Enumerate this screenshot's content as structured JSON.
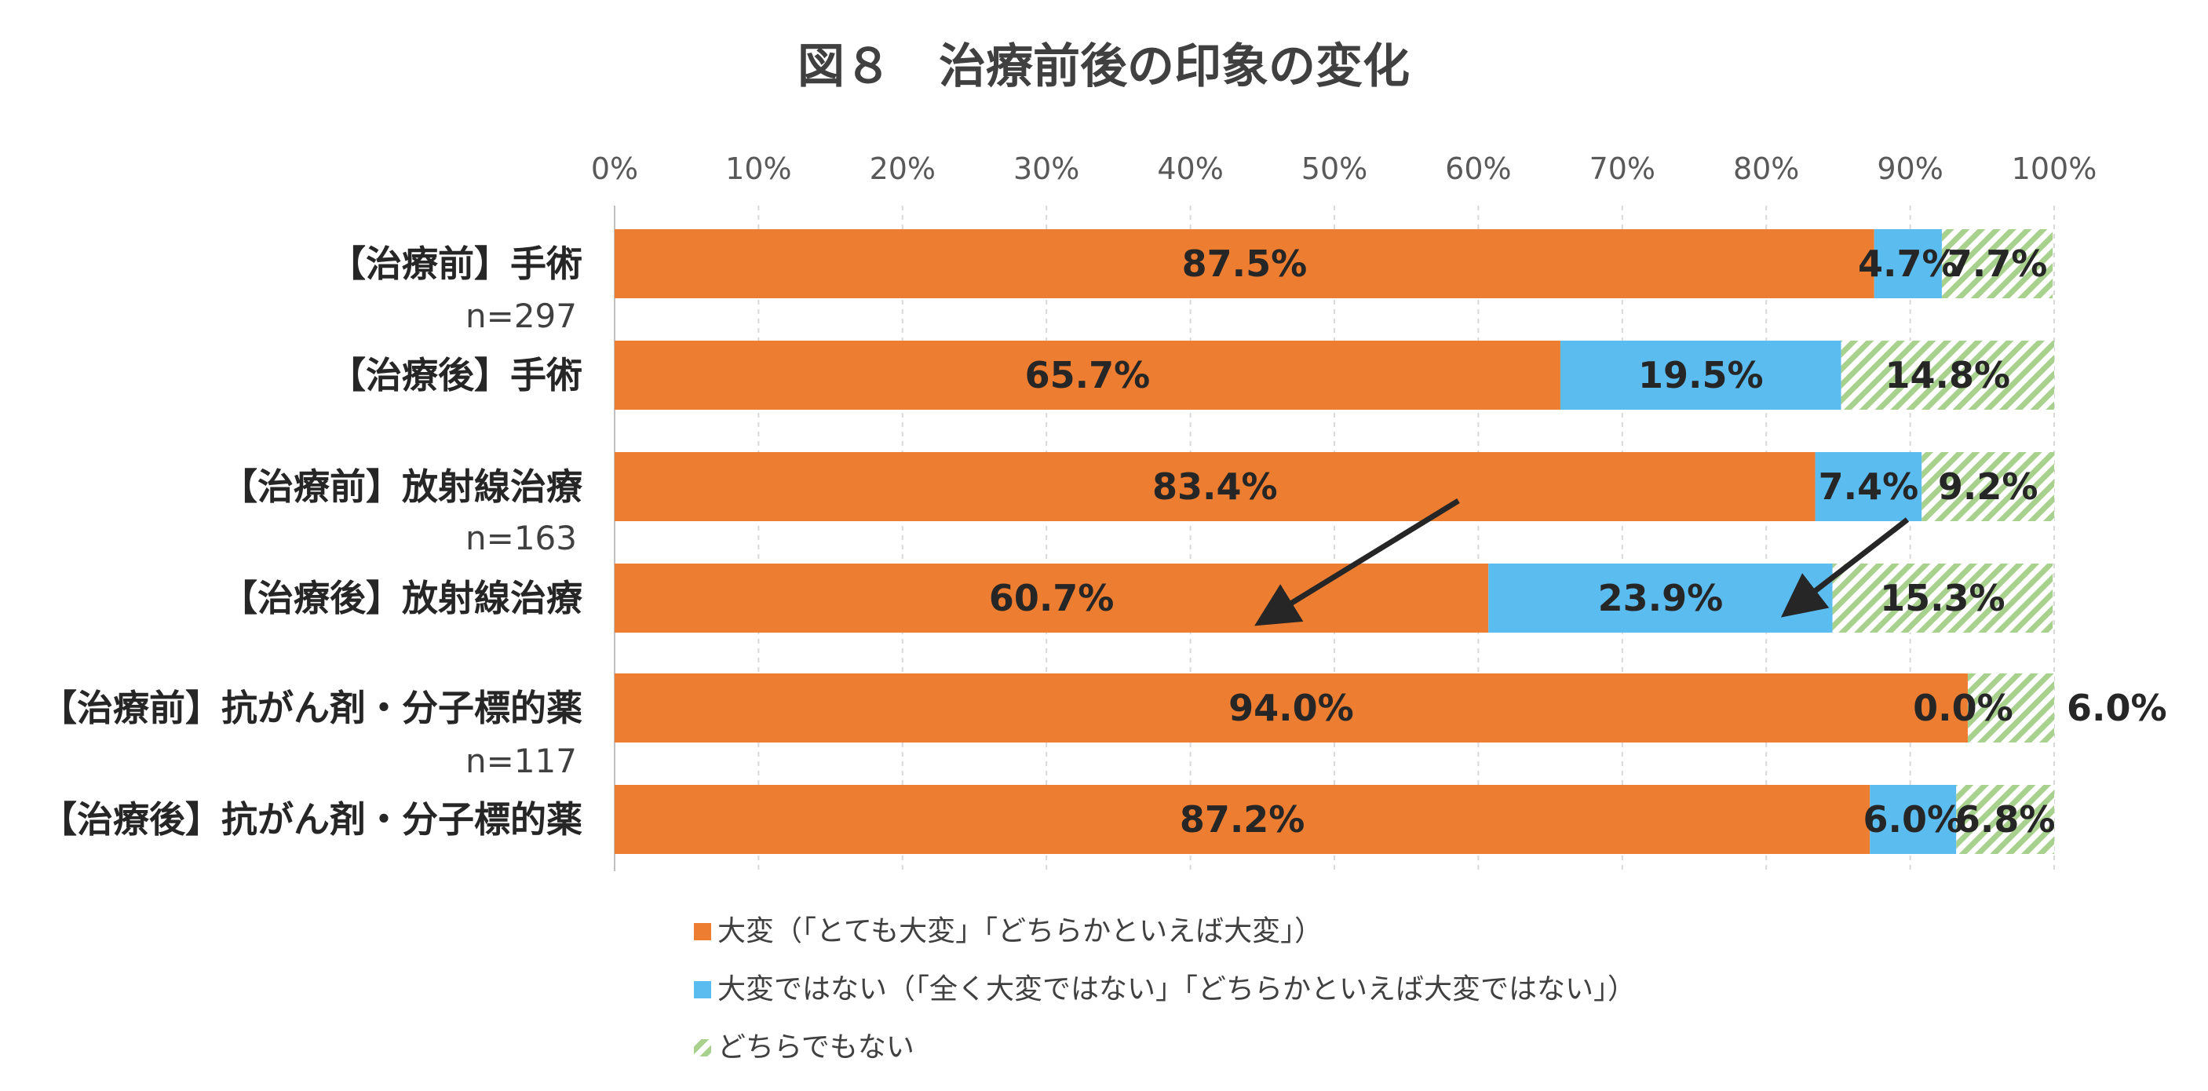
{
  "chart_data": {
    "type": "bar",
    "orientation": "horizontal",
    "stacked": true,
    "title": "図８　治療前後の印象の変化",
    "xlim": [
      0,
      100
    ],
    "x_ticks": [
      "0%",
      "10%",
      "20%",
      "30%",
      "40%",
      "50%",
      "60%",
      "70%",
      "80%",
      "90%",
      "100%"
    ],
    "categories": [
      "【治療前】手術",
      "【治療後】手術",
      "【治療前】放射線治療",
      "【治療後】放射線治療",
      "【治療前】抗がん剤・分子標的薬",
      "【治療後】抗がん剤・分子標的薬"
    ],
    "group_sizes": [
      "n=297",
      "n=163",
      "n=117"
    ],
    "series": [
      {
        "name": "大変（「とても大変」「どちらかといえば大変」）",
        "color": "#ED7D31",
        "pattern": "solid",
        "values": [
          87.5,
          65.7,
          83.4,
          60.7,
          94.0,
          87.2
        ],
        "labels": [
          "87.5%",
          "65.7%",
          "83.4%",
          "60.7%",
          "94.0%",
          "87.2%"
        ]
      },
      {
        "name": "大変ではない（「全く大変ではない」「どちらかといえば大変ではない」）",
        "color": "#5BBCEF",
        "pattern": "solid",
        "values": [
          4.7,
          19.5,
          7.4,
          23.9,
          0.0,
          6.0
        ],
        "labels": [
          "4.7%",
          "19.5%",
          "7.4%",
          "23.9%",
          "0.0%",
          "6.0%"
        ]
      },
      {
        "name": "どちらでもない",
        "color": "#A9D18E",
        "pattern": "diagonal-hatch",
        "values": [
          7.7,
          14.8,
          9.2,
          15.3,
          6.0,
          6.8
        ],
        "labels": [
          "7.7%",
          "14.8%",
          "9.2%",
          "15.3%",
          "6.0%",
          "6.8%"
        ]
      }
    ],
    "annotations": [
      {
        "type": "arrow",
        "description": "decrease in 大変 share for 放射線治療 (83.4% to 60.7%)"
      },
      {
        "type": "arrow",
        "description": "increase in 大変ではない share for 放射線治療 (7.4% to 23.9%)"
      }
    ],
    "legend_position": "bottom",
    "grid": true
  }
}
